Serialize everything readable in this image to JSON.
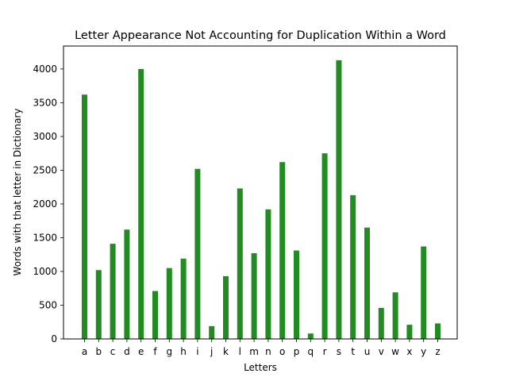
{
  "chart_data": {
    "type": "bar",
    "title": "Letter Appearance Not Accounting for Duplication Within a Word",
    "xlabel": "Letters",
    "ylabel": "Words with that letter in Dictionary",
    "categories": [
      "a",
      "b",
      "c",
      "d",
      "e",
      "f",
      "g",
      "h",
      "i",
      "j",
      "k",
      "l",
      "m",
      "n",
      "o",
      "p",
      "q",
      "r",
      "s",
      "t",
      "u",
      "v",
      "w",
      "x",
      "y",
      "z"
    ],
    "values": [
      3620,
      1020,
      1410,
      1620,
      4000,
      710,
      1050,
      1190,
      2520,
      190,
      930,
      2230,
      1270,
      1920,
      2620,
      1310,
      80,
      2750,
      4130,
      2130,
      1650,
      460,
      690,
      210,
      1370,
      230
    ],
    "yticks": [
      "0",
      "500",
      "1000",
      "1500",
      "2000",
      "2500",
      "3000",
      "3500",
      "4000"
    ],
    "ylim": [
      0,
      4340
    ],
    "grid": false,
    "legend": "none",
    "bar_color": "#228b22"
  }
}
